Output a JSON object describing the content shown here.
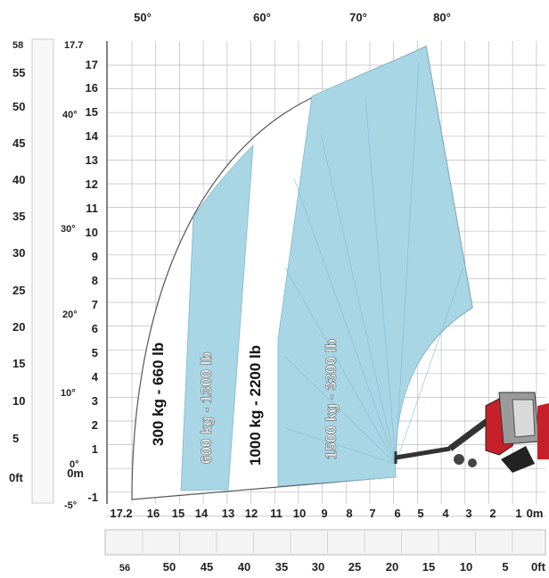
{
  "chart_data": {
    "type": "load-chart",
    "top_angle_labels": [
      "50°",
      "60°",
      "70°",
      "80°"
    ],
    "left_side_angle_labels": [
      "40°",
      "30°",
      "20°",
      "10°",
      "0°",
      "-5°"
    ],
    "height_ft_ticks": [
      "58",
      "55",
      "50",
      "45",
      "40",
      "35",
      "30",
      "25",
      "20",
      "15",
      "10",
      "5",
      "0ft"
    ],
    "height_m_ticks": [
      "17.7",
      "17",
      "16",
      "15",
      "14",
      "13",
      "12",
      "11",
      "10",
      "9",
      "8",
      "7",
      "6",
      "5",
      "4",
      "3",
      "2",
      "1",
      "0m",
      "-1"
    ],
    "reach_m_ticks": [
      "17.2",
      "16",
      "15",
      "14",
      "13",
      "12",
      "11",
      "10",
      "9",
      "8",
      "7",
      "6",
      "5",
      "4",
      "3",
      "2",
      "1",
      "0m"
    ],
    "reach_ft_ticks": [
      "56",
      "50",
      "45",
      "40",
      "35",
      "30",
      "25",
      "20",
      "15",
      "10",
      "5",
      "0ft"
    ],
    "zones": [
      {
        "label": "300 kg - 660 lb",
        "fill": "#ffffff"
      },
      {
        "label": "600 kg - 1300 lb",
        "fill": "#a9d6e5"
      },
      {
        "label": "1000 kg - 2200 lb",
        "fill": "#ffffff"
      },
      {
        "label": "1500 kg - 3300 lb",
        "fill": "#a9d6e5"
      }
    ],
    "colors": {
      "load_zone": "#a9d6e5",
      "machine": "#c8202a",
      "grid": "#bdbdbd"
    }
  }
}
